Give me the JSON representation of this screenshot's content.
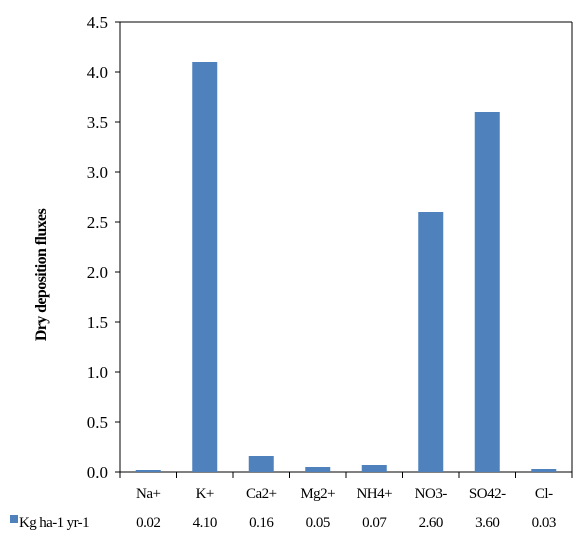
{
  "chart_data": {
    "type": "bar",
    "categories": [
      "Na+",
      "K+",
      "Ca2+",
      "Mg2+",
      "NH4+",
      "NO3-",
      "SO42-",
      "Cl-"
    ],
    "series": [
      {
        "name": "Kg ha-1 yr-1",
        "values": [
          0.02,
          4.1,
          0.16,
          0.05,
          0.07,
          2.6,
          3.6,
          0.03
        ]
      }
    ],
    "data_table_values": [
      "0.02",
      "4.10",
      "0.16",
      "0.05",
      "0.07",
      "2.60",
      "3.60",
      "0.03"
    ],
    "ylabel": "Dry deposition fluxes",
    "xlabel": "",
    "title": "",
    "ylim": [
      0,
      4.5
    ],
    "yticks": [
      "0.0",
      "0.5",
      "1.0",
      "1.5",
      "2.0",
      "2.5",
      "3.0",
      "3.5",
      "4.0",
      "4.5"
    ],
    "grid": false,
    "legend": "data table below plot",
    "bar_color": "#4f81bd"
  }
}
